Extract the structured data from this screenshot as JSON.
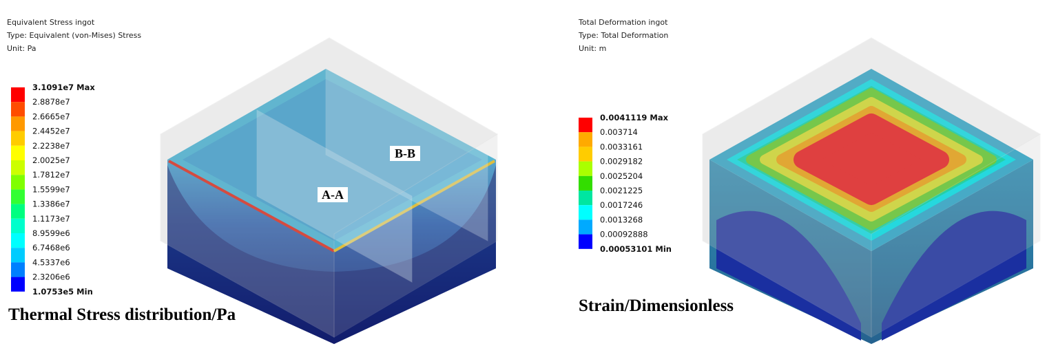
{
  "panels": [
    {
      "header": [
        "Equivalent Stress ingot",
        "Type: Equivalent (von-Mises) Stress",
        "Unit: Pa"
      ],
      "legend": {
        "labels": [
          "3.1091e7 Max",
          "2.8878e7",
          "2.6665e7",
          "2.4452e7",
          "2.2238e7",
          "2.0025e7",
          "1.7812e7",
          "1.5599e7",
          "1.3386e7",
          "1.1173e7",
          "8.9599e6",
          "6.7468e6",
          "4.5337e6",
          "2.3206e6",
          "1.0753e5 Min"
        ],
        "colors": [
          "#ff0000",
          "#ff4d00",
          "#ff9900",
          "#ffcc00",
          "#ffff00",
          "#ccff00",
          "#80ff00",
          "#33ff33",
          "#00ff80",
          "#00ffcc",
          "#00ffff",
          "#00ccff",
          "#0080ff",
          "#0000ff"
        ]
      },
      "caption": "Thermal Stress distribution/Pa",
      "annotations": [
        "A-A",
        "B-B"
      ]
    },
    {
      "header": [
        "Total Deformation ingot",
        "Type: Total Deformation",
        "Unit: m"
      ],
      "legend": {
        "labels": [
          "0.0041119 Max",
          "0.003714",
          "0.0033161",
          "0.0029182",
          "0.0025204",
          "0.0021225",
          "0.0017246",
          "0.0013268",
          "0.00092888",
          "0.00053101 Min"
        ],
        "colors": [
          "#ff0000",
          "#ffaa00",
          "#ffcc00",
          "#aaff00",
          "#33dd00",
          "#00e6a0",
          "#00ffff",
          "#00aaff",
          "#0000ff"
        ]
      },
      "caption": "Strain/Dimensionless"
    }
  ]
}
